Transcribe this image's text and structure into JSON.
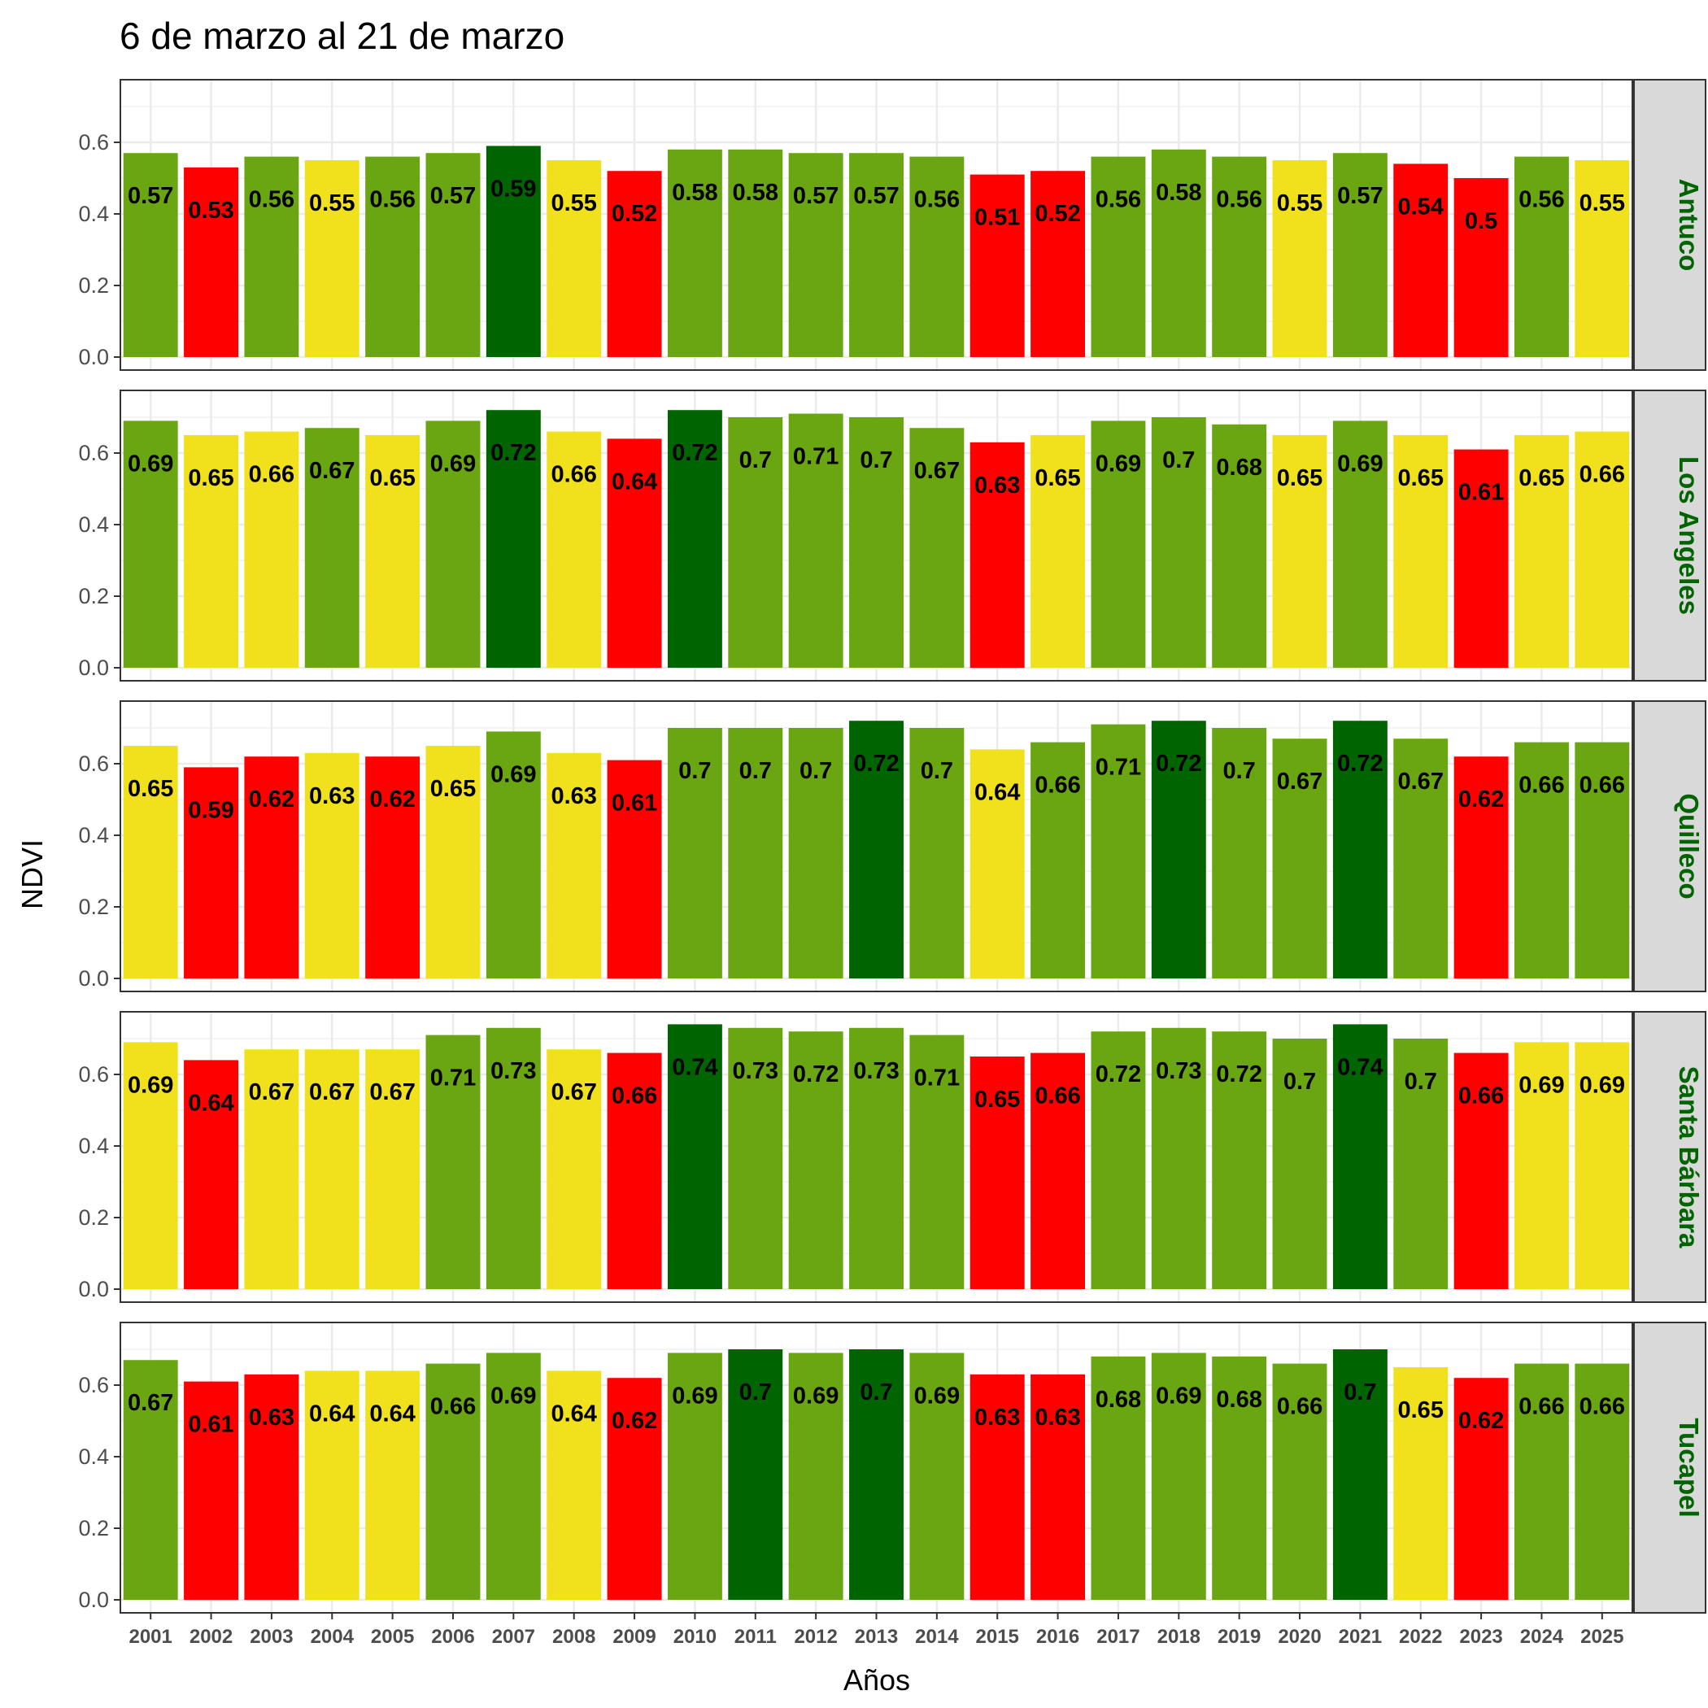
{
  "chart_data": {
    "type": "bar",
    "title": "6 de marzo al 21 de marzo",
    "xlabel": "Años",
    "ylabel": "NDVI",
    "ylim": [
      0,
      0.76
    ],
    "yticks": [
      "0.0",
      "0.2",
      "0.4",
      "0.6"
    ],
    "categories": [
      "2001",
      "2002",
      "2003",
      "2004",
      "2005",
      "2006",
      "2007",
      "2008",
      "2009",
      "2010",
      "2011",
      "2012",
      "2013",
      "2014",
      "2015",
      "2016",
      "2017",
      "2018",
      "2019",
      "2020",
      "2021",
      "2022",
      "2023",
      "2024",
      "2025"
    ],
    "grid": true,
    "strip_color": "#006400",
    "colors": {
      "dark_green": "#006400",
      "green": "#6aa611",
      "yellow": "#f0e11c",
      "red": "#ff0000"
    },
    "panels": [
      {
        "name": "Antuco",
        "values": [
          0.57,
          0.53,
          0.56,
          0.55,
          0.56,
          0.57,
          0.59,
          0.55,
          0.52,
          0.58,
          0.58,
          0.57,
          0.57,
          0.56,
          0.51,
          0.52,
          0.56,
          0.58,
          0.56,
          0.55,
          0.57,
          0.54,
          0.5,
          0.56,
          0.55
        ],
        "labels": [
          "0.57",
          "0.53",
          "0.56",
          "0.55",
          "0.56",
          "0.57",
          "0.59",
          "0.55",
          "0.52",
          "0.58",
          "0.58",
          "0.57",
          "0.57",
          "0.56",
          "0.51",
          "0.52",
          "0.56",
          "0.58",
          "0.56",
          "0.55",
          "0.57",
          "0.54",
          "0.5",
          "0.56",
          "0.55"
        ],
        "classes": [
          "green",
          "red",
          "green",
          "yellow",
          "green",
          "green",
          "dark_green",
          "yellow",
          "red",
          "green",
          "green",
          "green",
          "green",
          "green",
          "red",
          "red",
          "green",
          "green",
          "green",
          "yellow",
          "green",
          "red",
          "red",
          "green",
          "yellow"
        ]
      },
      {
        "name": "Los Angeles",
        "values": [
          0.69,
          0.65,
          0.66,
          0.67,
          0.65,
          0.69,
          0.72,
          0.66,
          0.64,
          0.72,
          0.7,
          0.71,
          0.7,
          0.67,
          0.63,
          0.65,
          0.69,
          0.7,
          0.68,
          0.65,
          0.69,
          0.65,
          0.61,
          0.65,
          0.66
        ],
        "labels": [
          "0.69",
          "0.65",
          "0.66",
          "0.67",
          "0.65",
          "0.69",
          "0.72",
          "0.66",
          "0.64",
          "0.72",
          "0.7",
          "0.71",
          "0.7",
          "0.67",
          "0.63",
          "0.65",
          "0.69",
          "0.7",
          "0.68",
          "0.65",
          "0.69",
          "0.65",
          "0.61",
          "0.65",
          "0.66"
        ],
        "classes": [
          "green",
          "yellow",
          "yellow",
          "green",
          "yellow",
          "green",
          "dark_green",
          "yellow",
          "red",
          "dark_green",
          "green",
          "green",
          "green",
          "green",
          "red",
          "yellow",
          "green",
          "green",
          "green",
          "yellow",
          "green",
          "yellow",
          "red",
          "yellow",
          "yellow"
        ]
      },
      {
        "name": "Quilleco",
        "values": [
          0.65,
          0.59,
          0.62,
          0.63,
          0.62,
          0.65,
          0.69,
          0.63,
          0.61,
          0.7,
          0.7,
          0.7,
          0.72,
          0.7,
          0.64,
          0.66,
          0.71,
          0.72,
          0.7,
          0.67,
          0.72,
          0.67,
          0.62,
          0.66,
          0.66
        ],
        "labels": [
          "0.65",
          "0.59",
          "0.62",
          "0.63",
          "0.62",
          "0.65",
          "0.69",
          "0.63",
          "0.61",
          "0.7",
          "0.7",
          "0.7",
          "0.72",
          "0.7",
          "0.64",
          "0.66",
          "0.71",
          "0.72",
          "0.7",
          "0.67",
          "0.72",
          "0.67",
          "0.62",
          "0.66",
          "0.66"
        ],
        "classes": [
          "yellow",
          "red",
          "red",
          "yellow",
          "red",
          "yellow",
          "green",
          "yellow",
          "red",
          "green",
          "green",
          "green",
          "dark_green",
          "green",
          "yellow",
          "green",
          "green",
          "dark_green",
          "green",
          "green",
          "dark_green",
          "green",
          "red",
          "green",
          "green"
        ]
      },
      {
        "name": "Santa Bárbara",
        "values": [
          0.69,
          0.64,
          0.67,
          0.67,
          0.67,
          0.71,
          0.73,
          0.67,
          0.66,
          0.74,
          0.73,
          0.72,
          0.73,
          0.71,
          0.65,
          0.66,
          0.72,
          0.73,
          0.72,
          0.7,
          0.74,
          0.7,
          0.66,
          0.69,
          0.69
        ],
        "labels": [
          "0.69",
          "0.64",
          "0.67",
          "0.67",
          "0.67",
          "0.71",
          "0.73",
          "0.67",
          "0.66",
          "0.74",
          "0.73",
          "0.72",
          "0.73",
          "0.71",
          "0.65",
          "0.66",
          "0.72",
          "0.73",
          "0.72",
          "0.7",
          "0.74",
          "0.7",
          "0.66",
          "0.69",
          "0.69"
        ],
        "classes": [
          "yellow",
          "red",
          "yellow",
          "yellow",
          "yellow",
          "green",
          "green",
          "yellow",
          "red",
          "dark_green",
          "green",
          "green",
          "green",
          "green",
          "red",
          "red",
          "green",
          "green",
          "green",
          "green",
          "dark_green",
          "green",
          "red",
          "yellow",
          "yellow"
        ]
      },
      {
        "name": "Tucapel",
        "values": [
          0.67,
          0.61,
          0.63,
          0.64,
          0.64,
          0.66,
          0.69,
          0.64,
          0.62,
          0.69,
          0.7,
          0.69,
          0.7,
          0.69,
          0.63,
          0.63,
          0.68,
          0.69,
          0.68,
          0.66,
          0.7,
          0.65,
          0.62,
          0.66,
          0.66
        ],
        "labels": [
          "0.67",
          "0.61",
          "0.63",
          "0.64",
          "0.64",
          "0.66",
          "0.69",
          "0.64",
          "0.62",
          "0.69",
          "0.7",
          "0.69",
          "0.7",
          "0.69",
          "0.63",
          "0.63",
          "0.68",
          "0.69",
          "0.68",
          "0.66",
          "0.7",
          "0.65",
          "0.62",
          "0.66",
          "0.66"
        ],
        "classes": [
          "green",
          "red",
          "red",
          "yellow",
          "yellow",
          "green",
          "green",
          "yellow",
          "red",
          "green",
          "dark_green",
          "green",
          "dark_green",
          "green",
          "red",
          "red",
          "green",
          "green",
          "green",
          "green",
          "dark_green",
          "yellow",
          "red",
          "green",
          "green"
        ]
      }
    ]
  }
}
